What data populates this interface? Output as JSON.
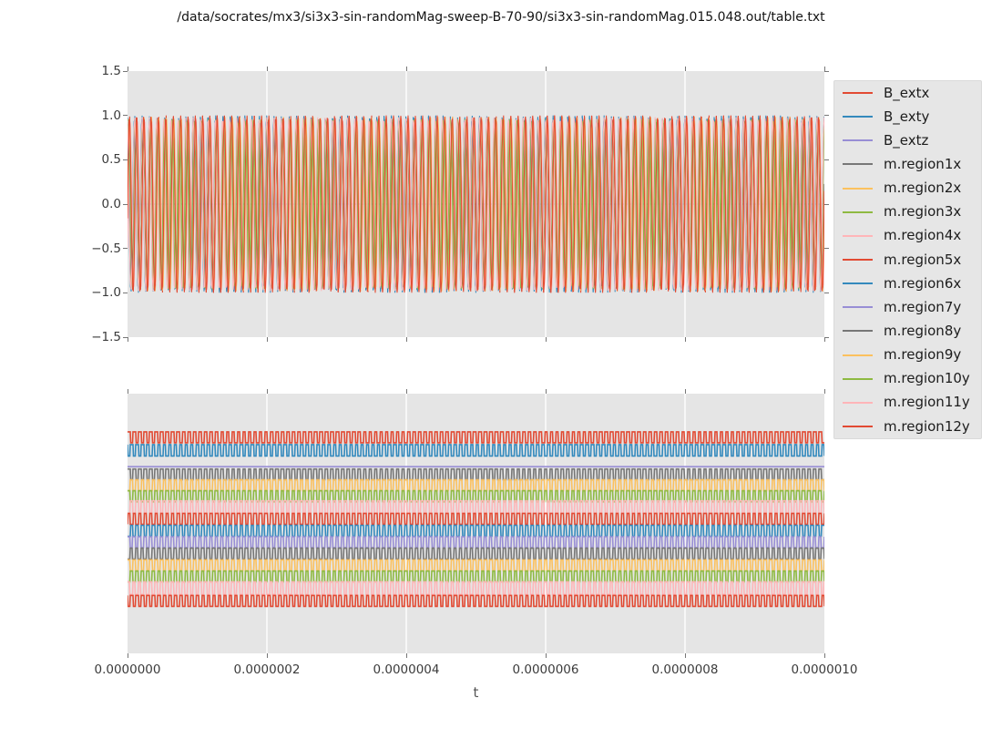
{
  "title": "/data/socrates/mx3/si3x3-sin-randomMag-sweep-B-70-90/si3x3-sin-randomMag.015.048.out/table.txt",
  "colors": {
    "figure_bg": "#ffffff",
    "panel_bg": "#e5e5e5",
    "grid": "#ffffff",
    "tick": "#777777",
    "tick_label": "#3b3b3b",
    "axis_label": "#555555",
    "title_text": "#141414",
    "legend_bg": "#e6e6e6",
    "legend_border": "#dadada",
    "legend_text": "#1c1c1c",
    "palette_red": "#E24A33",
    "palette_blue": "#348ABD",
    "palette_purple": "#988ED5",
    "palette_gray": "#777777",
    "palette_orange": "#FBC15E",
    "palette_green": "#8EBA42",
    "palette_pink": "#FFB5B8"
  },
  "axes": {
    "x": {
      "label": "t",
      "tick_labels": [
        "0.0000000",
        "0.0000002",
        "0.0000004",
        "0.0000006",
        "0.0000008",
        "0.0000010"
      ],
      "tick_values": [
        0,
        2e-07,
        4e-07,
        6e-07,
        8e-07,
        1e-06
      ],
      "range": [
        0,
        1e-06
      ]
    },
    "y_top": {
      "tick_labels": [
        "1.5",
        "1.0",
        "0.5",
        "0.0",
        "−0.5",
        "−1.0",
        "−1.5"
      ],
      "tick_values": [
        1.5,
        1.0,
        0.5,
        0.0,
        -0.5,
        -1.0,
        -1.5
      ],
      "range": [
        -1.5,
        1.5
      ]
    },
    "y_bottom": {
      "tick_labels": [],
      "note": "bottom panel has no visible y ticks"
    }
  },
  "legend": {
    "position": "right-of-top-panel",
    "entries": [
      {
        "label": "B_extx",
        "color": "#E24A33"
      },
      {
        "label": "B_exty",
        "color": "#348ABD"
      },
      {
        "label": "B_extz",
        "color": "#988ED5"
      },
      {
        "label": "m.region1x",
        "color": "#777777"
      },
      {
        "label": "m.region2x",
        "color": "#FBC15E"
      },
      {
        "label": "m.region3x",
        "color": "#8EBA42"
      },
      {
        "label": "m.region4x",
        "color": "#FFB5B8"
      },
      {
        "label": "m.region5x",
        "color": "#E24A33"
      },
      {
        "label": "m.region6x",
        "color": "#348ABD"
      },
      {
        "label": "m.region7y",
        "color": "#988ED5"
      },
      {
        "label": "m.region8y",
        "color": "#777777"
      },
      {
        "label": "m.region9y",
        "color": "#FBC15E"
      },
      {
        "label": "m.region10y",
        "color": "#8EBA42"
      },
      {
        "label": "m.region11y",
        "color": "#FFB5B8"
      },
      {
        "label": "m.region12y",
        "color": "#E24A33"
      }
    ]
  },
  "chart_data": [
    {
      "type": "line",
      "panel": "top",
      "xlim": [
        0,
        1e-06
      ],
      "ylim": [
        -1.5,
        1.5
      ],
      "xticks": [
        0,
        2e-07,
        4e-07,
        6e-07,
        8e-07,
        1e-06
      ],
      "yticks": [
        1.5,
        1.0,
        0.5,
        0.0,
        -0.5,
        -1.0,
        -1.5
      ],
      "grid": "vertical-white-gridlines",
      "legend_position": "outside-right",
      "cycles_estimate": 95,
      "description": "Dense sinusoidal oscillations between -1 and +1 over 0..1e-6 s; red and blue dominate, orange/green/pink/gray peek out near the peaks; B_extz is flat at 0.",
      "series": [
        {
          "name": "B_extx",
          "color": "#E24A33",
          "waveform": "sine",
          "amplitude": 1.0,
          "phase_deg": 0
        },
        {
          "name": "B_exty",
          "color": "#348ABD",
          "waveform": "sine",
          "amplitude": 1.0,
          "phase_deg": 90
        },
        {
          "name": "B_extz",
          "color": "#988ED5",
          "waveform": "flat",
          "value": 0
        },
        {
          "name": "m.region1x",
          "color": "#777777",
          "waveform": "sine",
          "amplitude": 0.965,
          "phase_deg": 12
        },
        {
          "name": "m.region2x",
          "color": "#FBC15E",
          "waveform": "sine",
          "amplitude": 0.985,
          "phase_deg": -14
        },
        {
          "name": "m.region3x",
          "color": "#8EBA42",
          "waveform": "sine",
          "amplitude": 0.955,
          "phase_deg": 18
        },
        {
          "name": "m.region4x",
          "color": "#FFB5B8",
          "waveform": "sine",
          "amplitude": 0.97,
          "phase_deg": -22
        },
        {
          "name": "m.region5x",
          "color": "#E24A33",
          "waveform": "sine",
          "amplitude": 0.995,
          "phase_deg": 5
        },
        {
          "name": "m.region6x",
          "color": "#348ABD",
          "waveform": "sine",
          "amplitude": 0.99,
          "phase_deg": 96
        },
        {
          "name": "m.region7y",
          "color": "#988ED5",
          "waveform": "sine",
          "amplitude": 0.945,
          "phase_deg": 101
        },
        {
          "name": "m.region8y",
          "color": "#777777",
          "waveform": "sine",
          "amplitude": 0.94,
          "phase_deg": 86
        },
        {
          "name": "m.region9y",
          "color": "#FBC15E",
          "waveform": "sine",
          "amplitude": 0.975,
          "phase_deg": -7
        },
        {
          "name": "m.region10y",
          "color": "#8EBA42",
          "waveform": "sine",
          "amplitude": 0.96,
          "phase_deg": 80
        },
        {
          "name": "m.region11y",
          "color": "#FFB5B8",
          "waveform": "sine",
          "amplitude": 0.98,
          "phase_deg": 108
        },
        {
          "name": "m.region12y",
          "color": "#E24A33",
          "waveform": "sine",
          "amplitude": 1.0,
          "phase_deg": 3
        }
      ]
    },
    {
      "type": "line",
      "panel": "bottom",
      "xlim": [
        0,
        1e-06
      ],
      "grid": "vertical-white-gridlines",
      "yticks": [],
      "cycles_estimate": 127,
      "description": "Fifteen stacked square-wave bands (one per series, legend order top to bottom); the B_extz trace is a flat line; band vertical positions given as fraction of panel height.",
      "series": [
        {
          "name": "B_extx",
          "color": "#E24A33",
          "waveform": "square",
          "center_frac": 0.168,
          "half_amp_frac": 0.021,
          "phase_deg": 0
        },
        {
          "name": "B_exty",
          "color": "#348ABD",
          "waveform": "square",
          "center_frac": 0.218,
          "half_amp_frac": 0.022,
          "phase_deg": 185
        },
        {
          "name": "B_extz",
          "color": "#988ED5",
          "waveform": "flat",
          "center_frac": 0.281
        },
        {
          "name": "m.region1x",
          "color": "#777777",
          "waveform": "square",
          "center_frac": 0.311,
          "half_amp_frac": 0.021,
          "phase_deg": 8
        },
        {
          "name": "m.region2x",
          "color": "#FBC15E",
          "waveform": "square",
          "center_frac": 0.353,
          "half_amp_frac": 0.021,
          "phase_deg": 188
        },
        {
          "name": "m.region3x",
          "color": "#8EBA42",
          "waveform": "square",
          "center_frac": 0.395,
          "half_amp_frac": 0.021,
          "phase_deg": 16
        },
        {
          "name": "m.region4x",
          "color": "#FFB5B8",
          "waveform": "square",
          "center_frac": 0.437,
          "half_amp_frac": 0.024,
          "phase_deg": 196
        },
        {
          "name": "m.region5x",
          "color": "#E24A33",
          "waveform": "square",
          "center_frac": 0.482,
          "half_amp_frac": 0.021,
          "phase_deg": 4
        },
        {
          "name": "m.region6x",
          "color": "#348ABD",
          "waveform": "square",
          "center_frac": 0.528,
          "half_amp_frac": 0.021,
          "phase_deg": 184
        },
        {
          "name": "m.region7y",
          "color": "#988ED5",
          "waveform": "square",
          "center_frac": 0.572,
          "half_amp_frac": 0.021,
          "phase_deg": 24
        },
        {
          "name": "m.region8y",
          "color": "#777777",
          "waveform": "square",
          "center_frac": 0.616,
          "half_amp_frac": 0.021,
          "phase_deg": 204
        },
        {
          "name": "m.region9y",
          "color": "#FBC15E",
          "waveform": "square",
          "center_frac": 0.661,
          "half_amp_frac": 0.021,
          "phase_deg": 12
        },
        {
          "name": "m.region10y",
          "color": "#8EBA42",
          "waveform": "square",
          "center_frac": 0.704,
          "half_amp_frac": 0.021,
          "phase_deg": 192
        },
        {
          "name": "m.region11y",
          "color": "#FFB5B8",
          "waveform": "square",
          "center_frac": 0.749,
          "half_amp_frac": 0.024,
          "phase_deg": 28
        },
        {
          "name": "m.region12y",
          "color": "#E24A33",
          "waveform": "square",
          "center_frac": 0.798,
          "half_amp_frac": 0.021,
          "phase_deg": 176
        }
      ]
    }
  ]
}
